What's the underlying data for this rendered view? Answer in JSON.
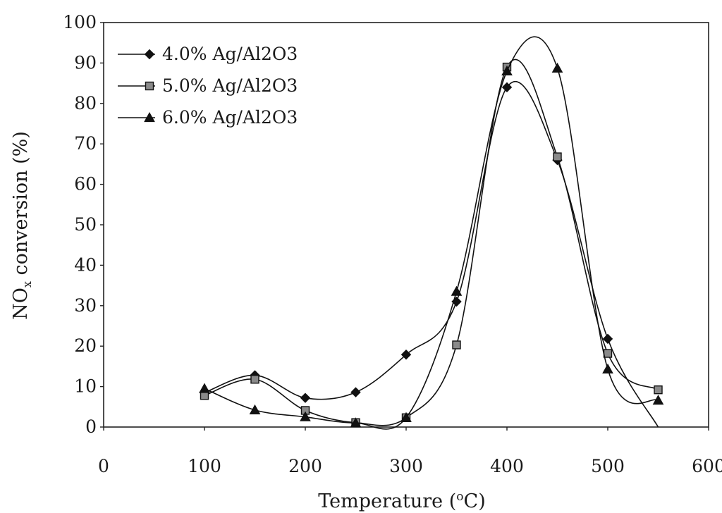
{
  "chart_data": {
    "type": "line",
    "xlabel": "Temperature (°C)",
    "ylabel": "NOx conversion (%)",
    "xlim": [
      0,
      600
    ],
    "ylim": [
      0,
      100
    ],
    "x_ticks": [
      "0",
      "100",
      "200",
      "300",
      "400",
      "500",
      "600"
    ],
    "y_ticks": [
      "0",
      "10",
      "20",
      "30",
      "40",
      "50",
      "60",
      "70",
      "80",
      "90",
      "100"
    ],
    "grid": false,
    "legend_position": "top-left",
    "series": [
      {
        "name": "4.0% Ag/Al2O3",
        "marker": "diamond",
        "x": [
          100,
          150,
          200,
          250,
          300,
          350,
          400,
          450,
          500,
          550
        ],
        "y": [
          8.5,
          12.8,
          7.2,
          8.6,
          17.9,
          31.0,
          84.0,
          66.0,
          21.8,
          0
        ]
      },
      {
        "name": "5.0% Ag/Al2O3",
        "marker": "square",
        "x": [
          100,
          150,
          200,
          250,
          300,
          350,
          400,
          450,
          500,
          550
        ],
        "y": [
          7.8,
          11.8,
          4.1,
          1.1,
          2.3,
          20.3,
          89.0,
          66.8,
          18.2,
          9.2
        ]
      },
      {
        "name": "6.0% Ag/Al2O3",
        "marker": "triangle",
        "x": [
          100,
          150,
          200,
          250,
          300,
          350,
          400,
          450,
          500,
          550
        ],
        "y": [
          9.5,
          4.2,
          2.5,
          1.0,
          2.3,
          33.5,
          88.0,
          88.7,
          14.3,
          6.6
        ]
      }
    ]
  }
}
